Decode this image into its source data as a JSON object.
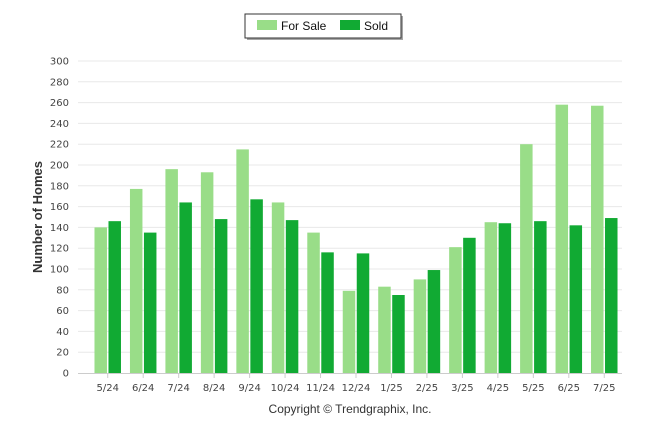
{
  "chart_data": {
    "type": "bar",
    "categories": [
      "5/24",
      "6/24",
      "7/24",
      "8/24",
      "9/24",
      "10/24",
      "11/24",
      "12/24",
      "1/25",
      "2/25",
      "3/25",
      "4/25",
      "5/25",
      "6/25",
      "7/25"
    ],
    "series": [
      {
        "name": "For Sale",
        "color": "#99dd88",
        "values": [
          140,
          177,
          196,
          193,
          215,
          164,
          135,
          79,
          83,
          90,
          121,
          145,
          220,
          258,
          257
        ]
      },
      {
        "name": "Sold",
        "color": "#11aa33",
        "values": [
          146,
          135,
          164,
          148,
          167,
          147,
          116,
          115,
          75,
          99,
          130,
          144,
          146,
          142,
          149
        ]
      }
    ],
    "ylabel": "Number of Homes",
    "xlabel": "",
    "ylim": [
      0,
      300
    ],
    "yticks": [
      0,
      20,
      40,
      60,
      80,
      100,
      120,
      140,
      160,
      180,
      200,
      220,
      240,
      260,
      280,
      300
    ],
    "grid": true,
    "legend_position": "top-center"
  },
  "footer": {
    "copyright": "Copyright © Trendgraphix, Inc."
  }
}
